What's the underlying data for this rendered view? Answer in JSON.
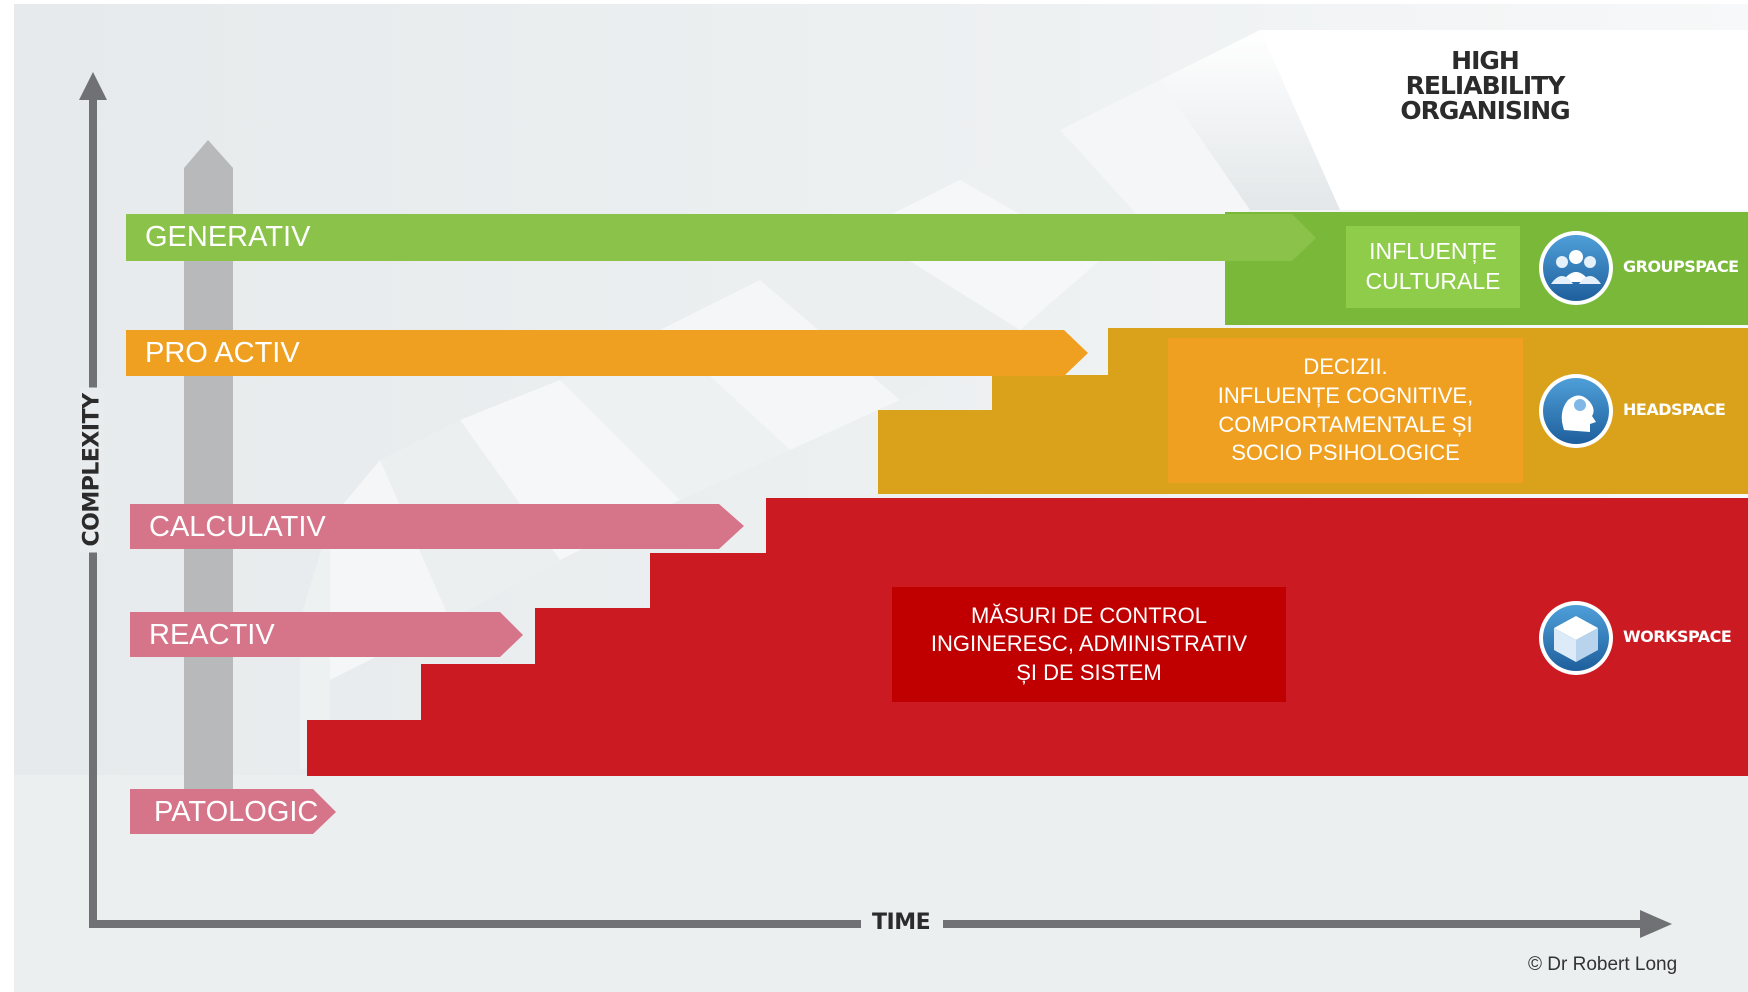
{
  "title": [
    "HIGH",
    "RELIABILITY",
    "ORGANISING"
  ],
  "axes": {
    "y_label": "COMPLEXITY",
    "x_label": "TIME"
  },
  "tiers": [
    {
      "label": "GENERATIV",
      "color": "#8bc34a"
    },
    {
      "label": "PRO ACTIV",
      "color": "#f0a020"
    },
    {
      "label": "CALCULATIV",
      "color": "#d67589"
    },
    {
      "label": "REACTIV",
      "color": "#d67589"
    },
    {
      "label": "PATOLOGIC",
      "color": "#d67589"
    }
  ],
  "boxes": {
    "cultural": {
      "lines": [
        "INFLUENȚE",
        "CULTURALE"
      ],
      "color": "#8fcc4a"
    },
    "cognitive": {
      "lines": [
        "DECIZII.",
        "INFLUENȚE COGNITIVE,",
        "COMPORTAMENTALE ȘI",
        "SOCIO PSIHOLOGICE"
      ],
      "color": "#f0a020"
    },
    "control": {
      "lines": [
        "MĂSURI DE CONTROL",
        "INGINERESC, ADMINISTRATIV",
        "ȘI DE SISTEM"
      ],
      "color": "#c00000"
    }
  },
  "spaces": [
    {
      "label": "GROUPSPACE",
      "icon": "groupspace-icon"
    },
    {
      "label": "HEADSPACE",
      "icon": "headspace-icon"
    },
    {
      "label": "WORKSPACE",
      "icon": "workspace-icon"
    }
  ],
  "band_colors": {
    "green": "#7ab83a",
    "orange": "#d9a21a",
    "red": "#cc1a22"
  },
  "copyright": "© Dr Robert Long"
}
